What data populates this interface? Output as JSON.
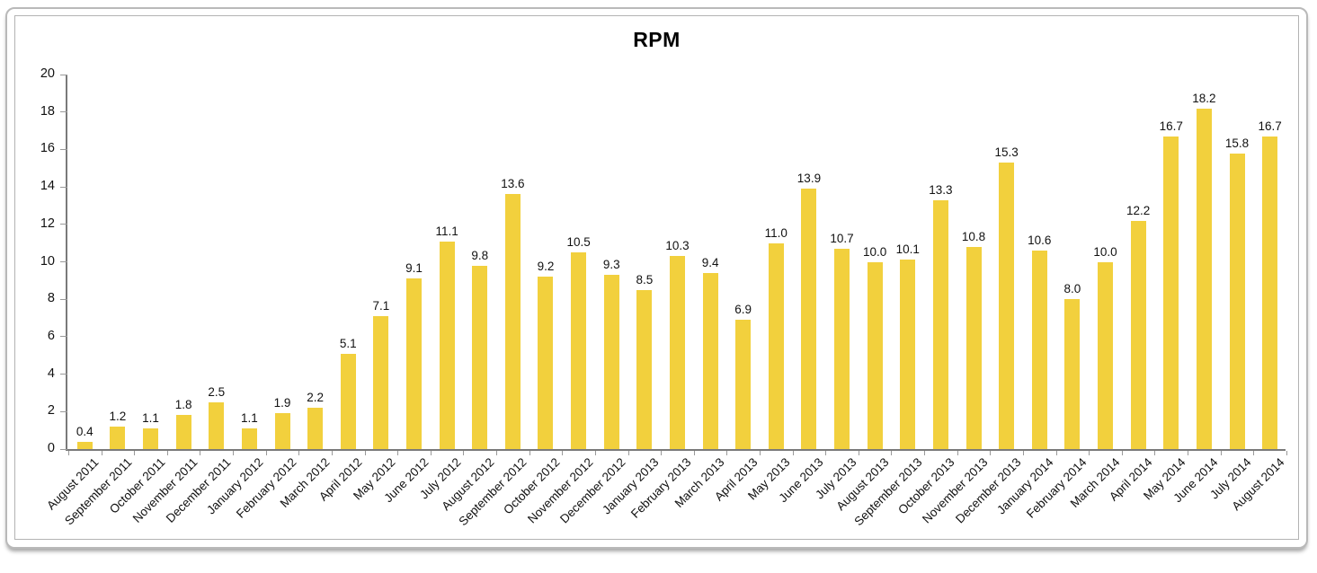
{
  "chart_data": {
    "type": "bar",
    "title": "RPM",
    "categories": [
      "August 2011",
      "September 2011",
      "October 2011",
      "November 2011",
      "December 2011",
      "January 2012",
      "February 2012",
      "March 2012",
      "April 2012",
      "May 2012",
      "June 2012",
      "July 2012",
      "August 2012",
      "September 2012",
      "October 2012",
      "November 2012",
      "December 2012",
      "January 2013",
      "February 2013",
      "March 2013",
      "April 2013",
      "May 2013",
      "June 2013",
      "July 2013",
      "August 2013",
      "September 2013",
      "October 2013",
      "November 2013",
      "December 2013",
      "January 2014",
      "February 2014",
      "March 2014",
      "April 2014",
      "May 2014",
      "June 2014",
      "July 2014",
      "August 2014"
    ],
    "values": [
      0.4,
      1.2,
      1.1,
      1.8,
      2.5,
      1.1,
      1.9,
      2.2,
      5.1,
      7.1,
      9.1,
      11.1,
      9.8,
      13.6,
      9.2,
      10.5,
      9.3,
      8.5,
      10.3,
      9.4,
      6.9,
      11.0,
      13.9,
      10.7,
      10.0,
      10.1,
      13.3,
      10.8,
      15.3,
      10.6,
      8.0,
      10.0,
      12.2,
      16.7,
      18.2,
      15.8,
      16.7
    ],
    "xlabel": "",
    "ylabel": "",
    "ylim": [
      0,
      20
    ],
    "ytick_step": 2,
    "grid": false,
    "legend": "none",
    "value_labels": true,
    "bar_color": "#F2D03D",
    "axis_color": "#7a7a7a",
    "tick_color": "#999999",
    "text_color": "#111111"
  }
}
